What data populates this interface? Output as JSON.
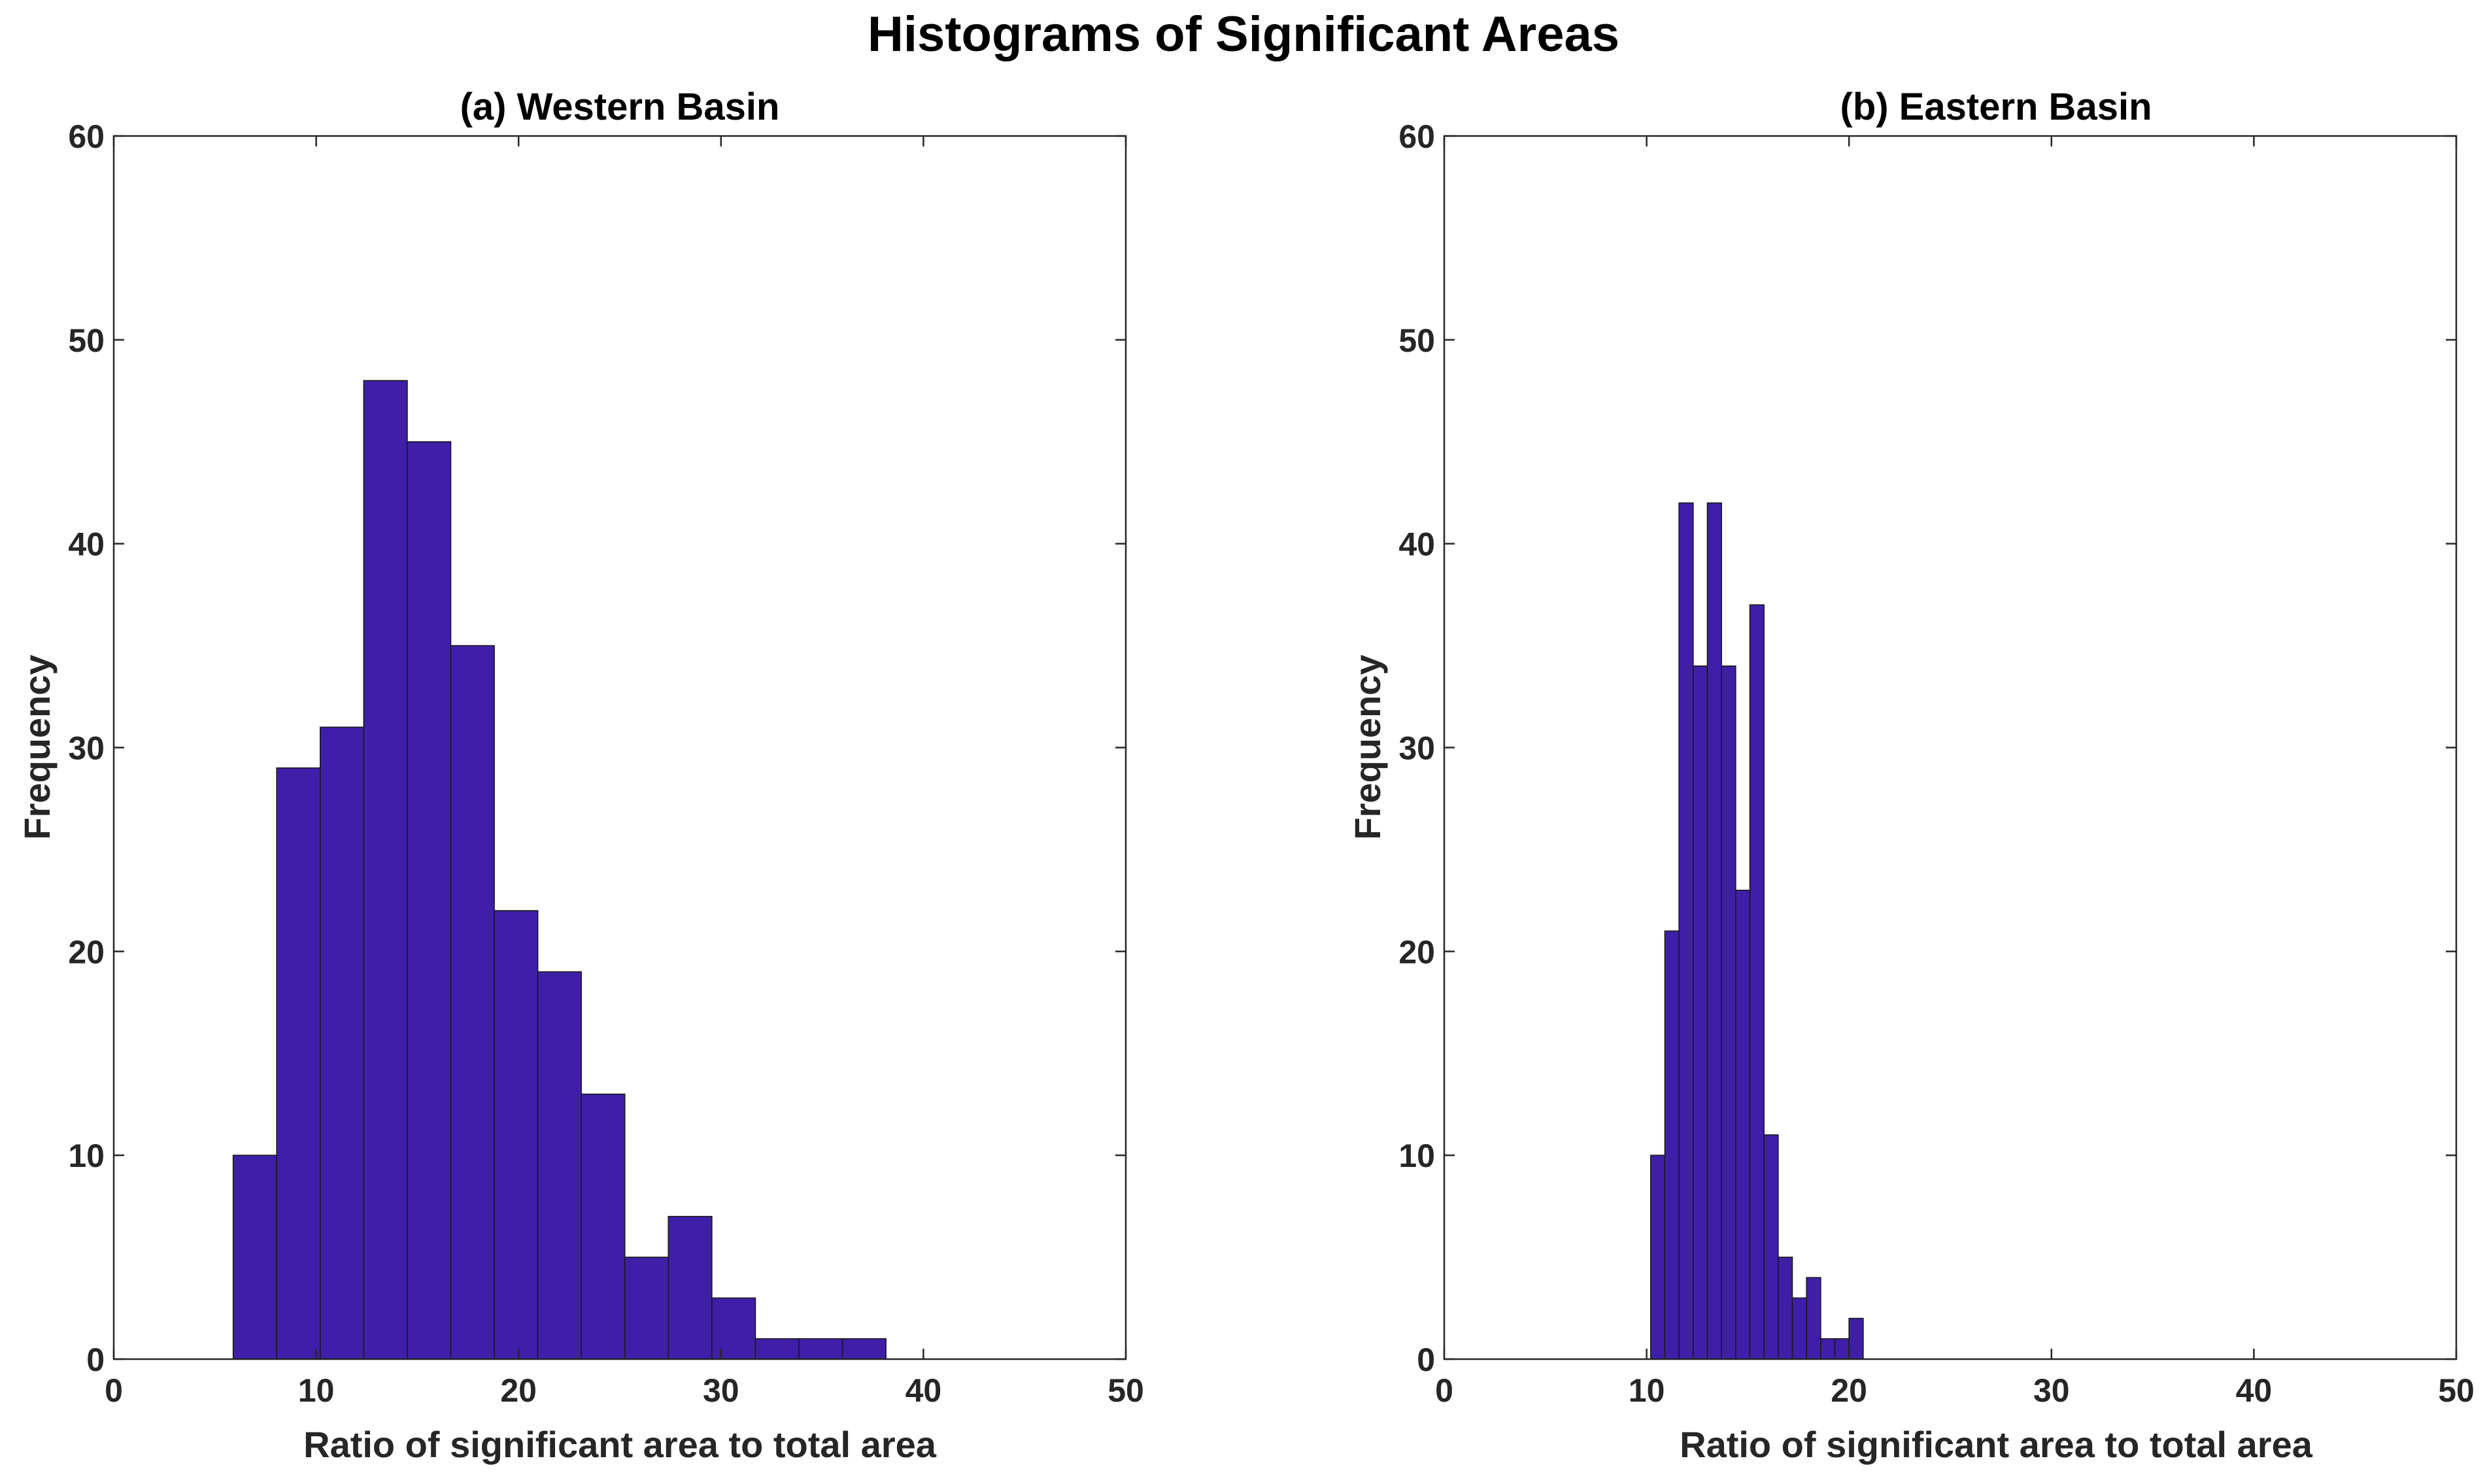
{
  "figure": {
    "title": "Histograms of Significant Areas"
  },
  "colors": {
    "bar_fill": "#3F1FA8",
    "bar_edge": "#1a1a1a",
    "axis": "#262626"
  },
  "chart_data": [
    {
      "type": "bar",
      "title": "(a) Western Basin",
      "xlabel": "Ratio of significant area to total area",
      "ylabel": "Frequency",
      "xlim": [
        0,
        50
      ],
      "ylim": [
        0,
        60
      ],
      "xticks": [
        0,
        10,
        20,
        30,
        40,
        50
      ],
      "yticks": [
        0,
        10,
        20,
        30,
        40,
        50,
        60
      ],
      "grid": false,
      "bin_edges": [
        5.9,
        8.05,
        10.2,
        12.35,
        14.5,
        16.65,
        18.8,
        20.95,
        23.1,
        25.25,
        27.4,
        29.55,
        31.7,
        33.85,
        36.0,
        38.15
      ],
      "values": [
        10,
        29,
        31,
        48,
        45,
        35,
        22,
        19,
        13,
        5,
        7,
        3,
        1,
        1,
        1
      ]
    },
    {
      "type": "bar",
      "title": "(b) Eastern Basin",
      "xlabel": "Ratio of significant area to total area",
      "ylabel": "Frequency",
      "xlim": [
        0,
        50
      ],
      "ylim": [
        0,
        60
      ],
      "xticks": [
        0,
        10,
        20,
        30,
        40,
        50
      ],
      "yticks": [
        0,
        10,
        20,
        30,
        40,
        50,
        60
      ],
      "grid": false,
      "bin_edges": [
        10.2,
        10.9,
        11.6,
        12.3,
        13.0,
        13.7,
        14.4,
        15.1,
        15.8,
        16.5,
        17.2,
        17.9,
        18.6,
        19.3,
        20.0,
        20.7,
        21.4
      ],
      "values": [
        10,
        21,
        42,
        34,
        42,
        34,
        23,
        37,
        11,
        5,
        3,
        4,
        1,
        1,
        2,
        0
      ]
    }
  ]
}
